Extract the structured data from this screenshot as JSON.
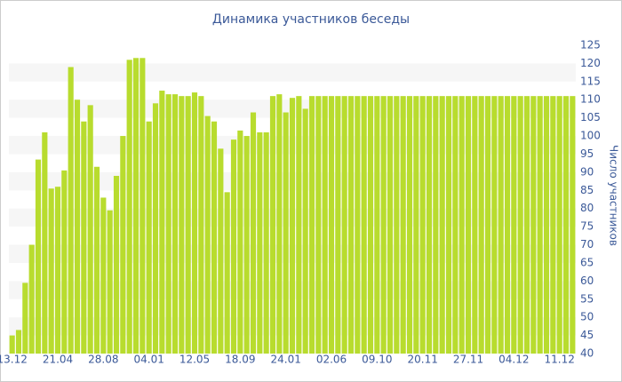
{
  "chart_data": {
    "type": "bar",
    "title": "Динамика участников беседы",
    "y_label": "Число участников",
    "categories": [
      "13.12",
      null,
      null,
      null,
      null,
      null,
      null,
      "21.04",
      null,
      null,
      null,
      null,
      null,
      null,
      "28.08",
      null,
      null,
      null,
      null,
      null,
      null,
      "04.01",
      null,
      null,
      null,
      null,
      null,
      null,
      "12.05",
      null,
      null,
      null,
      null,
      null,
      null,
      "18.09",
      null,
      null,
      null,
      null,
      null,
      null,
      "24.01",
      null,
      null,
      null,
      null,
      null,
      null,
      "02.06",
      null,
      null,
      null,
      null,
      null,
      null,
      "09.10",
      null,
      null,
      null,
      null,
      null,
      null,
      "20.11",
      null,
      null,
      null,
      null,
      null,
      null,
      "27.11",
      null,
      null,
      null,
      null,
      null,
      null,
      "04.12",
      null,
      null,
      null,
      null,
      null,
      null,
      "11.12",
      null,
      null
    ],
    "values": [
      45,
      46.5,
      59.5,
      70,
      93.5,
      101,
      85.5,
      86,
      90.5,
      119,
      110,
      104,
      108.5,
      91.5,
      83,
      79.5,
      89,
      100,
      121,
      121.5,
      121.5,
      104,
      109,
      112.5,
      111.5,
      111.5,
      111,
      111,
      112,
      111,
      105.5,
      104,
      96.5,
      84.5,
      99,
      101.5,
      100,
      106.5,
      101,
      101,
      111,
      111.5,
      106.5,
      110.5,
      111,
      107.5,
      111,
      111,
      111,
      111,
      111,
      111,
      111,
      111,
      111,
      111,
      111,
      111,
      111,
      111,
      111,
      111,
      111,
      111,
      111,
      111,
      111,
      111,
      111,
      111,
      111,
      111,
      111,
      111,
      111,
      111,
      111,
      111,
      111,
      111,
      111,
      111,
      111,
      111,
      111,
      111,
      111
    ],
    "color": "#b8dc2e",
    "ylim": [
      40,
      125
    ],
    "yticks": [
      40,
      45,
      50,
      55,
      60,
      65,
      70,
      75,
      80,
      85,
      90,
      95,
      100,
      105,
      110,
      115,
      120,
      125
    ],
    "grid": true
  }
}
